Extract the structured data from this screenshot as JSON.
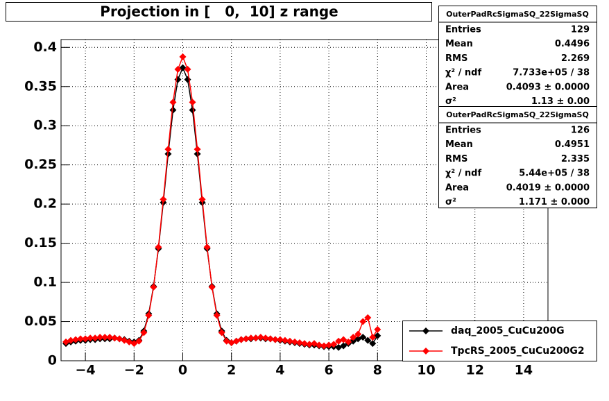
{
  "chart_data": {
    "type": "scatter",
    "title": "Projection in [   0,  10] z range",
    "x": [
      -4.8,
      -4.6,
      -4.4,
      -4.2,
      -4,
      -3.8,
      -3.6,
      -3.4,
      -3.2,
      -3,
      -2.8,
      -2.6,
      -2.4,
      -2.2,
      -2,
      -1.8,
      -1.6,
      -1.4,
      -1.2,
      -1,
      -0.8,
      -0.6,
      -0.4,
      -0.2,
      0,
      0.2,
      0.4,
      0.6,
      0.8,
      1,
      1.2,
      1.4,
      1.6,
      1.8,
      2,
      2.2,
      2.4,
      2.6,
      2.8,
      3,
      3.2,
      3.4,
      3.6,
      3.8,
      4,
      4.2,
      4.4,
      4.6,
      4.8,
      5,
      5.2,
      5.4,
      5.6,
      5.8,
      6,
      6.2,
      6.4,
      6.6,
      6.8,
      7,
      7.2,
      7.4,
      7.6,
      7.8,
      8
    ],
    "series": [
      {
        "name": "daq_2005_CuCu200G",
        "color": "#000000",
        "values": [
          0.022,
          0.024,
          0.025,
          0.026,
          0.026,
          0.027,
          0.027,
          0.028,
          0.028,
          0.028,
          0.029,
          0.028,
          0.027,
          0.025,
          0.024,
          0.026,
          0.038,
          0.06,
          0.095,
          0.143,
          0.202,
          0.264,
          0.32,
          0.359,
          0.374,
          0.359,
          0.32,
          0.264,
          0.202,
          0.143,
          0.095,
          0.06,
          0.038,
          0.026,
          0.023,
          0.025,
          0.027,
          0.028,
          0.028,
          0.029,
          0.029,
          0.028,
          0.028,
          0.027,
          0.026,
          0.025,
          0.024,
          0.023,
          0.022,
          0.021,
          0.02,
          0.02,
          0.019,
          0.018,
          0.018,
          0.018,
          0.017,
          0.019,
          0.022,
          0.025,
          0.028,
          0.03,
          0.026,
          0.022,
          0.032
        ]
      },
      {
        "name": "TpcRS_2005_CuCu200G2",
        "color": "#ff0000",
        "values": [
          0.024,
          0.026,
          0.027,
          0.028,
          0.028,
          0.029,
          0.029,
          0.03,
          0.03,
          0.03,
          0.029,
          0.028,
          0.026,
          0.024,
          0.022,
          0.025,
          0.036,
          0.058,
          0.094,
          0.145,
          0.206,
          0.27,
          0.33,
          0.372,
          0.388,
          0.372,
          0.33,
          0.27,
          0.206,
          0.145,
          0.094,
          0.058,
          0.036,
          0.025,
          0.023,
          0.025,
          0.027,
          0.028,
          0.029,
          0.029,
          0.03,
          0.029,
          0.028,
          0.027,
          0.027,
          0.026,
          0.025,
          0.024,
          0.023,
          0.022,
          0.021,
          0.022,
          0.02,
          0.019,
          0.02,
          0.021,
          0.025,
          0.027,
          0.024,
          0.03,
          0.034,
          0.05,
          0.055,
          0.03,
          0.04
        ]
      }
    ],
    "xlim": [
      -5,
      15
    ],
    "ylim": [
      0,
      0.41
    ],
    "xticks": [
      {
        "value": -4,
        "label": "−4"
      },
      {
        "value": -2,
        "label": "−2"
      },
      0,
      2,
      4,
      6,
      8,
      10,
      12,
      14
    ],
    "yticks": [
      0,
      0.05,
      0.1,
      0.15,
      0.2,
      0.25,
      0.3,
      0.35,
      0.4
    ],
    "grid": true,
    "legend": "lower right",
    "stats": [
      {
        "title": "OuterPadRcSigmaSQ_22SigmaSQ",
        "rows": [
          {
            "label": "Entries",
            "value": "129"
          },
          {
            "label": "Mean",
            "value": "0.4496"
          },
          {
            "label": "RMS",
            "value": "2.269"
          },
          {
            "label": "χ² / ndf",
            "value": "7.733e+05 / 38"
          },
          {
            "label": "Area",
            "value": "0.4093 ± 0.0000"
          },
          {
            "label": "σ²",
            "value": "1.13 ± 0.00"
          }
        ]
      },
      {
        "title": "OuterPadRcSigmaSQ_22SigmaSQ",
        "rows": [
          {
            "label": "Entries",
            "value": "126"
          },
          {
            "label": "Mean",
            "value": "0.4951"
          },
          {
            "label": "RMS",
            "value": "2.335"
          },
          {
            "label": "χ² / ndf",
            "value": "5.44e+05 / 38"
          },
          {
            "label": "Area",
            "value": "0.4019 ± 0.0000"
          },
          {
            "label": "σ²",
            "value": "1.171 ± 0.000"
          }
        ]
      }
    ]
  }
}
